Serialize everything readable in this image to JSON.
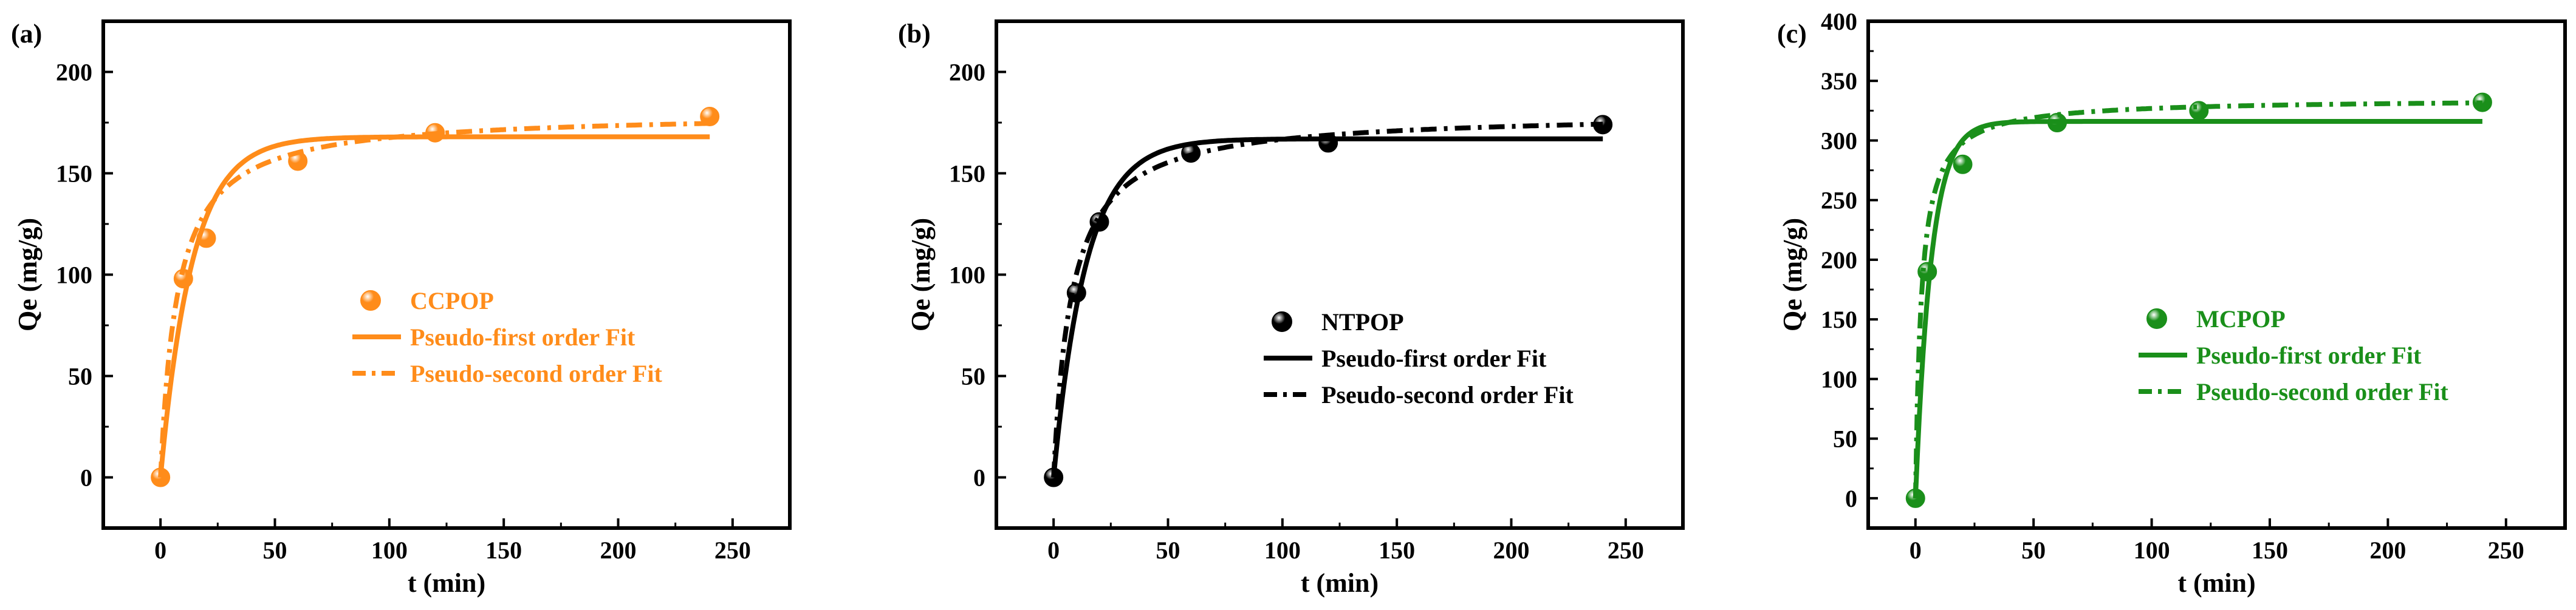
{
  "panels": [
    {
      "panel_label": "(a)",
      "color": "#ff8c1a",
      "chart_data": {
        "type": "scatter",
        "xlabel": "t (min)",
        "ylabel": "Qe (mg/g)",
        "xlim": [
          -25,
          275
        ],
        "ylim": [
          -25,
          225
        ],
        "xticks": [
          0,
          50,
          100,
          150,
          200,
          250
        ],
        "yticks": [
          0,
          50,
          100,
          150,
          200
        ],
        "grid": false,
        "legend_position": "center",
        "series": [
          {
            "name": "CCPOP",
            "kind": "points",
            "x": [
              0,
              10,
              20,
              60,
              120,
              240
            ],
            "y": [
              0,
              98,
              118,
              156,
              170,
              178
            ]
          },
          {
            "name": "Pseudo-first order Fit",
            "kind": "line-solid",
            "model": "pfo",
            "qe": 168,
            "k": 0.072,
            "x_range": [
              0,
              240
            ]
          },
          {
            "name": "Pseudo-second order Fit",
            "kind": "line-dashdot",
            "model": "pso",
            "qe": 180,
            "k": 0.00075,
            "x_range": [
              0,
              240
            ]
          }
        ]
      }
    },
    {
      "panel_label": "(b)",
      "color": "#000000",
      "chart_data": {
        "type": "scatter",
        "xlabel": "t (min)",
        "ylabel": "Qe (mg/g)",
        "xlim": [
          -25,
          275
        ],
        "ylim": [
          -25,
          225
        ],
        "xticks": [
          0,
          50,
          100,
          150,
          200,
          250
        ],
        "yticks": [
          0,
          50,
          100,
          150,
          200
        ],
        "grid": false,
        "legend_position": "center",
        "series": [
          {
            "name": "NTPOP",
            "kind": "points",
            "x": [
              0,
              10,
              20,
              60,
              120,
              240
            ],
            "y": [
              0,
              91,
              126,
              160,
              165,
              174
            ]
          },
          {
            "name": "Pseudo-first order Fit",
            "kind": "line-solid",
            "model": "pfo",
            "qe": 167,
            "k": 0.07,
            "x_range": [
              0,
              240
            ]
          },
          {
            "name": "Pseudo-second order Fit",
            "kind": "line-dashdot",
            "model": "pso",
            "qe": 180,
            "k": 0.0007,
            "x_range": [
              0,
              240
            ]
          }
        ]
      }
    },
    {
      "panel_label": "(c)",
      "color": "#1a8f1a",
      "chart_data": {
        "type": "scatter",
        "xlabel": "t (min)",
        "ylabel": "Qe (mg/g)",
        "xlim": [
          -20,
          275
        ],
        "ylim": [
          -25,
          400
        ],
        "xticks": [
          0,
          50,
          100,
          150,
          200,
          250
        ],
        "yticks": [
          0,
          50,
          100,
          150,
          200,
          250,
          300,
          350,
          400
        ],
        "grid": false,
        "legend_position": "center",
        "series": [
          {
            "name": "MCPOP",
            "kind": "points",
            "x": [
              0,
              5,
              20,
              60,
              120,
              240
            ],
            "y": [
              0,
              190,
              280,
              315,
              325,
              332
            ]
          },
          {
            "name": "Pseudo-first order Fit",
            "kind": "line-solid",
            "model": "pfo",
            "qe": 316,
            "k": 0.15,
            "x_range": [
              0,
              240
            ]
          },
          {
            "name": "Pseudo-second order Fit",
            "kind": "line-dashdot",
            "model": "pso",
            "qe": 335,
            "k": 0.0012,
            "x_range": [
              0,
              240
            ]
          }
        ]
      }
    }
  ]
}
